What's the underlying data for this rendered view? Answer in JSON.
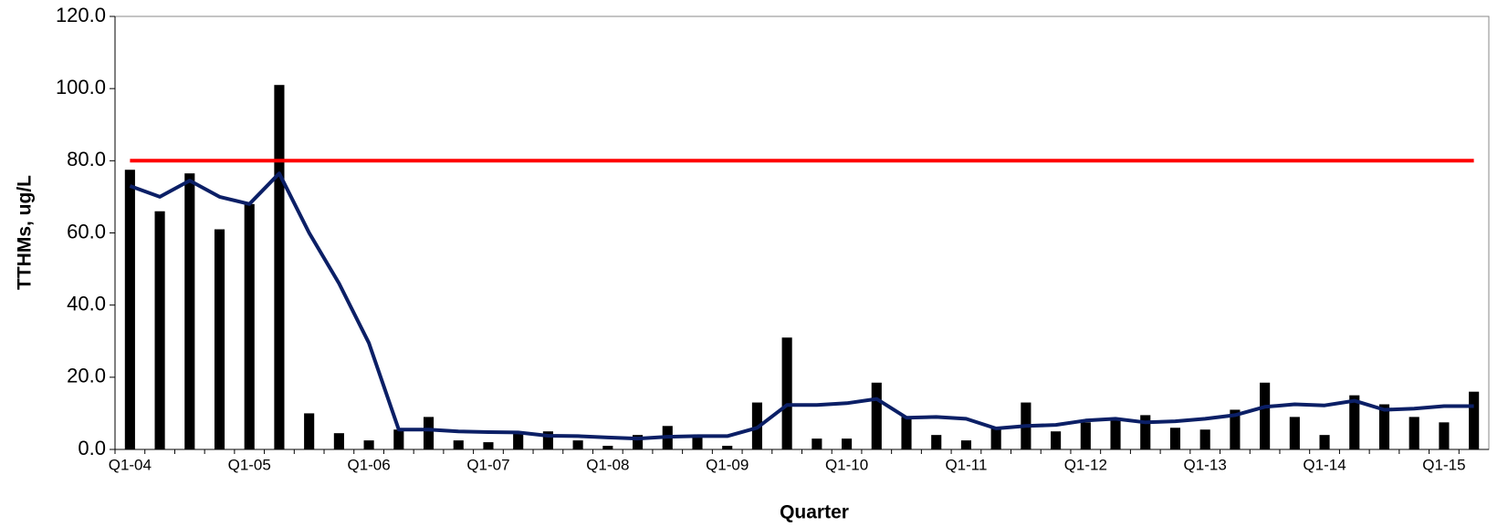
{
  "chart_data": {
    "type": "bar-line",
    "y_label": "TTHMs, ug/L",
    "x_label": "Quarter",
    "categories": [
      "Q1-04",
      null,
      null,
      null,
      "Q1-05",
      null,
      null,
      null,
      "Q1-06",
      null,
      null,
      null,
      "Q1-07",
      null,
      null,
      null,
      "Q1-08",
      null,
      null,
      null,
      "Q1-09",
      null,
      null,
      null,
      "Q1-10",
      null,
      null,
      null,
      "Q1-11",
      null,
      null,
      null,
      "Q1-12",
      null,
      null,
      null,
      "Q1-13",
      null,
      null,
      null,
      "Q1-14",
      null,
      null,
      null,
      "Q1-15",
      null
    ],
    "series": [
      {
        "kind": "bar",
        "color": "#000000",
        "values": [
          77.5,
          66,
          76.5,
          61,
          68,
          101,
          10,
          4.5,
          2.5,
          5.5,
          9,
          2.5,
          2,
          4.5,
          5,
          2.5,
          1,
          4,
          6.5,
          3.5,
          1,
          13,
          31,
          3,
          3,
          18.5,
          9,
          4,
          2.5,
          6,
          13,
          5,
          7.5,
          8,
          9.5,
          6,
          5.5,
          11,
          18.5,
          9,
          4,
          15,
          12.5,
          9,
          7.5,
          16
        ]
      },
      {
        "kind": "line",
        "color": "#0b1f66",
        "values": [
          73,
          70,
          74.5,
          70,
          68,
          76.5,
          60,
          46,
          29.5,
          5.5,
          5.5,
          5,
          4.8,
          4.7,
          3.8,
          3.7,
          3.3,
          3,
          3.5,
          3.7,
          3.7,
          6,
          12.3,
          12.3,
          12.8,
          14,
          8.8,
          9,
          8.5,
          5.8,
          6.5,
          6.8,
          8,
          8.5,
          7.5,
          7.8,
          8.5,
          9.5,
          11.8,
          12.5,
          12.2,
          13.5,
          11,
          11.3,
          12,
          12
        ]
      },
      {
        "kind": "line",
        "color": "#ff0000",
        "values": [
          80,
          80,
          80,
          80,
          80,
          80,
          80,
          80,
          80,
          80,
          80,
          80,
          80,
          80,
          80,
          80,
          80,
          80,
          80,
          80,
          80,
          80,
          80,
          80,
          80,
          80,
          80,
          80,
          80,
          80,
          80,
          80,
          80,
          80,
          80,
          80,
          80,
          80,
          80,
          80,
          80,
          80,
          80,
          80,
          80,
          80
        ]
      }
    ],
    "ylim": [
      0,
      120
    ],
    "yticks": [
      {
        "value": 0,
        "label": "0.0"
      },
      {
        "value": 20,
        "label": "20.0"
      },
      {
        "value": 40,
        "label": "40.0"
      },
      {
        "value": 60,
        "label": "60.0"
      },
      {
        "value": 80,
        "label": "80.0"
      },
      {
        "value": 100,
        "label": "100.0"
      },
      {
        "value": 120,
        "label": "120.0"
      }
    ]
  }
}
